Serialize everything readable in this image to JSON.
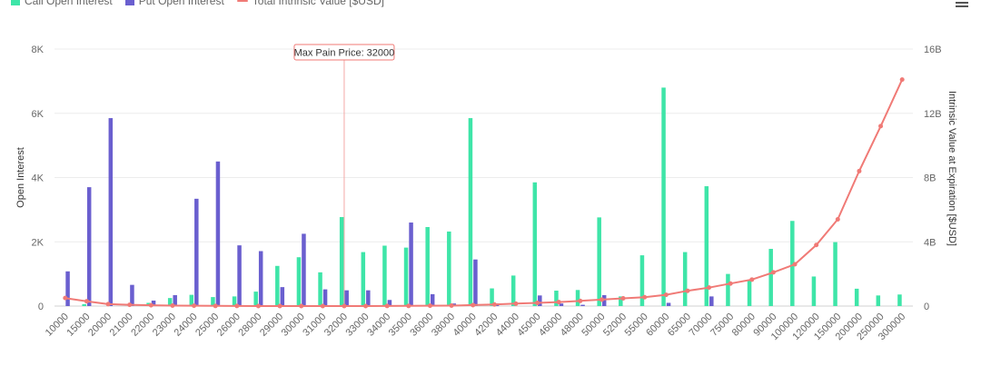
{
  "legend": {
    "call": {
      "label": "Call Open Interest",
      "color": "#3ee5a8"
    },
    "put": {
      "label": "Put Open Interest",
      "color": "#6a5fcf"
    },
    "intrinsic": {
      "label": "Total Intrinsic Value [$USD]",
      "color": "#f07a76"
    }
  },
  "menu": {
    "icon": "menu-icon"
  },
  "chart_data": {
    "type": "bar",
    "categories": [
      "10000",
      "15000",
      "20000",
      "21000",
      "22000",
      "23000",
      "24000",
      "25000",
      "26000",
      "28000",
      "29000",
      "30000",
      "31000",
      "32000",
      "33000",
      "34000",
      "35000",
      "36000",
      "38000",
      "40000",
      "42000",
      "44000",
      "45000",
      "46000",
      "48000",
      "50000",
      "52000",
      "55000",
      "60000",
      "65000",
      "70000",
      "75000",
      "80000",
      "90000",
      "100000",
      "120000",
      "150000",
      "200000",
      "250000",
      "300000"
    ],
    "series": [
      {
        "name": "Call Open Interest",
        "type": "bar",
        "axis": "left",
        "values": [
          0,
          60,
          0,
          0,
          100,
          250,
          350,
          280,
          300,
          450,
          1250,
          1520,
          1050,
          2770,
          1680,
          1880,
          1820,
          2460,
          2320,
          5850,
          550,
          950,
          3850,
          480,
          500,
          2760,
          300,
          1580,
          6800,
          1680,
          3730,
          1000,
          800,
          1780,
          2650,
          920,
          1990,
          540,
          330,
          360
        ]
      },
      {
        "name": "Put Open Interest",
        "type": "bar",
        "axis": "left",
        "values": [
          1080,
          3700,
          5850,
          660,
          170,
          340,
          3340,
          4500,
          1890,
          1710,
          590,
          2250,
          520,
          490,
          490,
          190,
          2600,
          370,
          80,
          1450,
          80,
          0,
          330,
          80,
          40,
          340,
          0,
          0,
          100,
          0,
          300,
          0,
          0,
          0,
          0,
          0,
          0,
          0,
          0,
          0
        ]
      },
      {
        "name": "Total Intrinsic Value [$USD]",
        "type": "line",
        "axis": "right",
        "values": [
          0.5,
          0.3,
          0.12,
          0.08,
          0.05,
          0.03,
          0.02,
          0.01,
          0.005,
          0.0,
          0.0,
          0.0,
          0.0,
          0.0,
          0.0,
          0.005,
          0.01,
          0.02,
          0.03,
          0.06,
          0.1,
          0.15,
          0.2,
          0.25,
          0.32,
          0.4,
          0.48,
          0.55,
          0.7,
          0.95,
          1.15,
          1.4,
          1.65,
          2.1,
          2.6,
          3.8,
          5.4,
          8.4,
          11.2,
          14.1
        ]
      }
    ],
    "max_pain_label": "Max Pain Price: 32000",
    "max_pain_category": "32000",
    "left_axis": {
      "title": "Open Interest",
      "min": 0,
      "max": 8000,
      "ticks": [
        0,
        2000,
        4000,
        6000,
        8000
      ],
      "tick_labels": [
        "0",
        "2K",
        "4K",
        "6K",
        "8K"
      ]
    },
    "right_axis": {
      "title": "Intrinsic Value at Expiration [$USD]",
      "min": 0,
      "max": 16,
      "ticks": [
        0,
        4,
        8,
        12,
        16
      ],
      "tick_labels": [
        "0",
        "4B",
        "8B",
        "12B",
        "16B"
      ]
    },
    "xlabel": "",
    "grid": true,
    "legend_position": "top-left"
  }
}
